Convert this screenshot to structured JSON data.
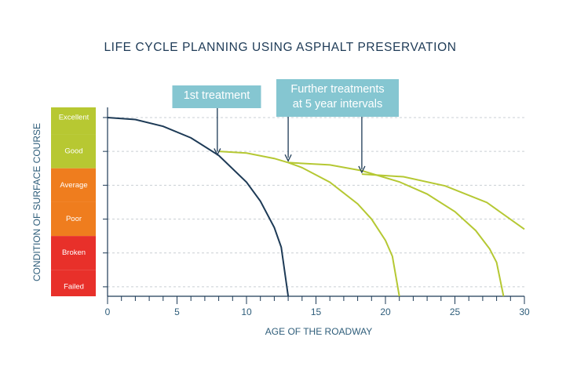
{
  "chart_data": {
    "type": "line",
    "title": "LIFE CYCLE PLANNING USING ASPHALT PRESERVATION",
    "x_label": "AGE OF THE ROADWAY",
    "y_label": "CONDITION OF SURFACE COURSE",
    "xlim": [
      0,
      30
    ],
    "xticks": [
      0,
      5,
      10,
      15,
      20,
      25,
      30
    ],
    "xminor_step": 1,
    "ylim": [
      -0.28,
      5.3
    ],
    "yticks": [
      {
        "value": 5,
        "label": "Excellent"
      },
      {
        "value": 4,
        "label": "Good"
      },
      {
        "value": 3,
        "label": "Average"
      },
      {
        "value": 2,
        "label": "Poor"
      },
      {
        "value": 1,
        "label": "Broken"
      },
      {
        "value": 0,
        "label": "Failed"
      }
    ],
    "ytick_colors": [
      "#b7c832",
      "#b7c832",
      "#ef7d1e",
      "#ef7d1e",
      "#e8302a",
      "#e8302a"
    ],
    "grid": true,
    "series": [
      {
        "color": "#1d3a56",
        "x": [
          0,
          2,
          4,
          6,
          8,
          10,
          11,
          12,
          12.5,
          13
        ],
        "values": [
          5.0,
          4.94,
          4.74,
          4.4,
          3.88,
          3.09,
          2.53,
          1.75,
          1.17,
          -0.28
        ]
      },
      {
        "color": "#b5c833",
        "x": [
          8,
          10,
          12,
          13,
          14,
          16,
          18,
          19,
          20,
          20.5,
          21
        ],
        "values": [
          4.0,
          3.95,
          3.79,
          3.67,
          3.52,
          3.09,
          2.45,
          2.0,
          1.37,
          0.9,
          -0.28
        ]
      },
      {
        "color": "#b5c833",
        "x": [
          13,
          16,
          18.3,
          21,
          23,
          25,
          26.5,
          27.5,
          28,
          28.5
        ],
        "values": [
          3.67,
          3.6,
          3.43,
          3.1,
          2.74,
          2.22,
          1.66,
          1.12,
          0.72,
          -0.28
        ]
      },
      {
        "color": "#b5c833",
        "x": [
          18.3,
          21.3,
          24.3,
          27.3,
          30
        ],
        "values": [
          3.33,
          3.25,
          2.98,
          2.49,
          1.7
        ]
      }
    ],
    "annotations": [
      {
        "lines": [
          "1st treatment"
        ],
        "arrows_x": [
          7.9
        ],
        "arrows_y": [
          3.9
        ]
      },
      {
        "lines": [
          "Further treatments",
          "at 5 year intervals"
        ],
        "arrows_x": [
          13,
          18.3
        ],
        "arrows_y": [
          3.72,
          3.38
        ]
      }
    ]
  }
}
